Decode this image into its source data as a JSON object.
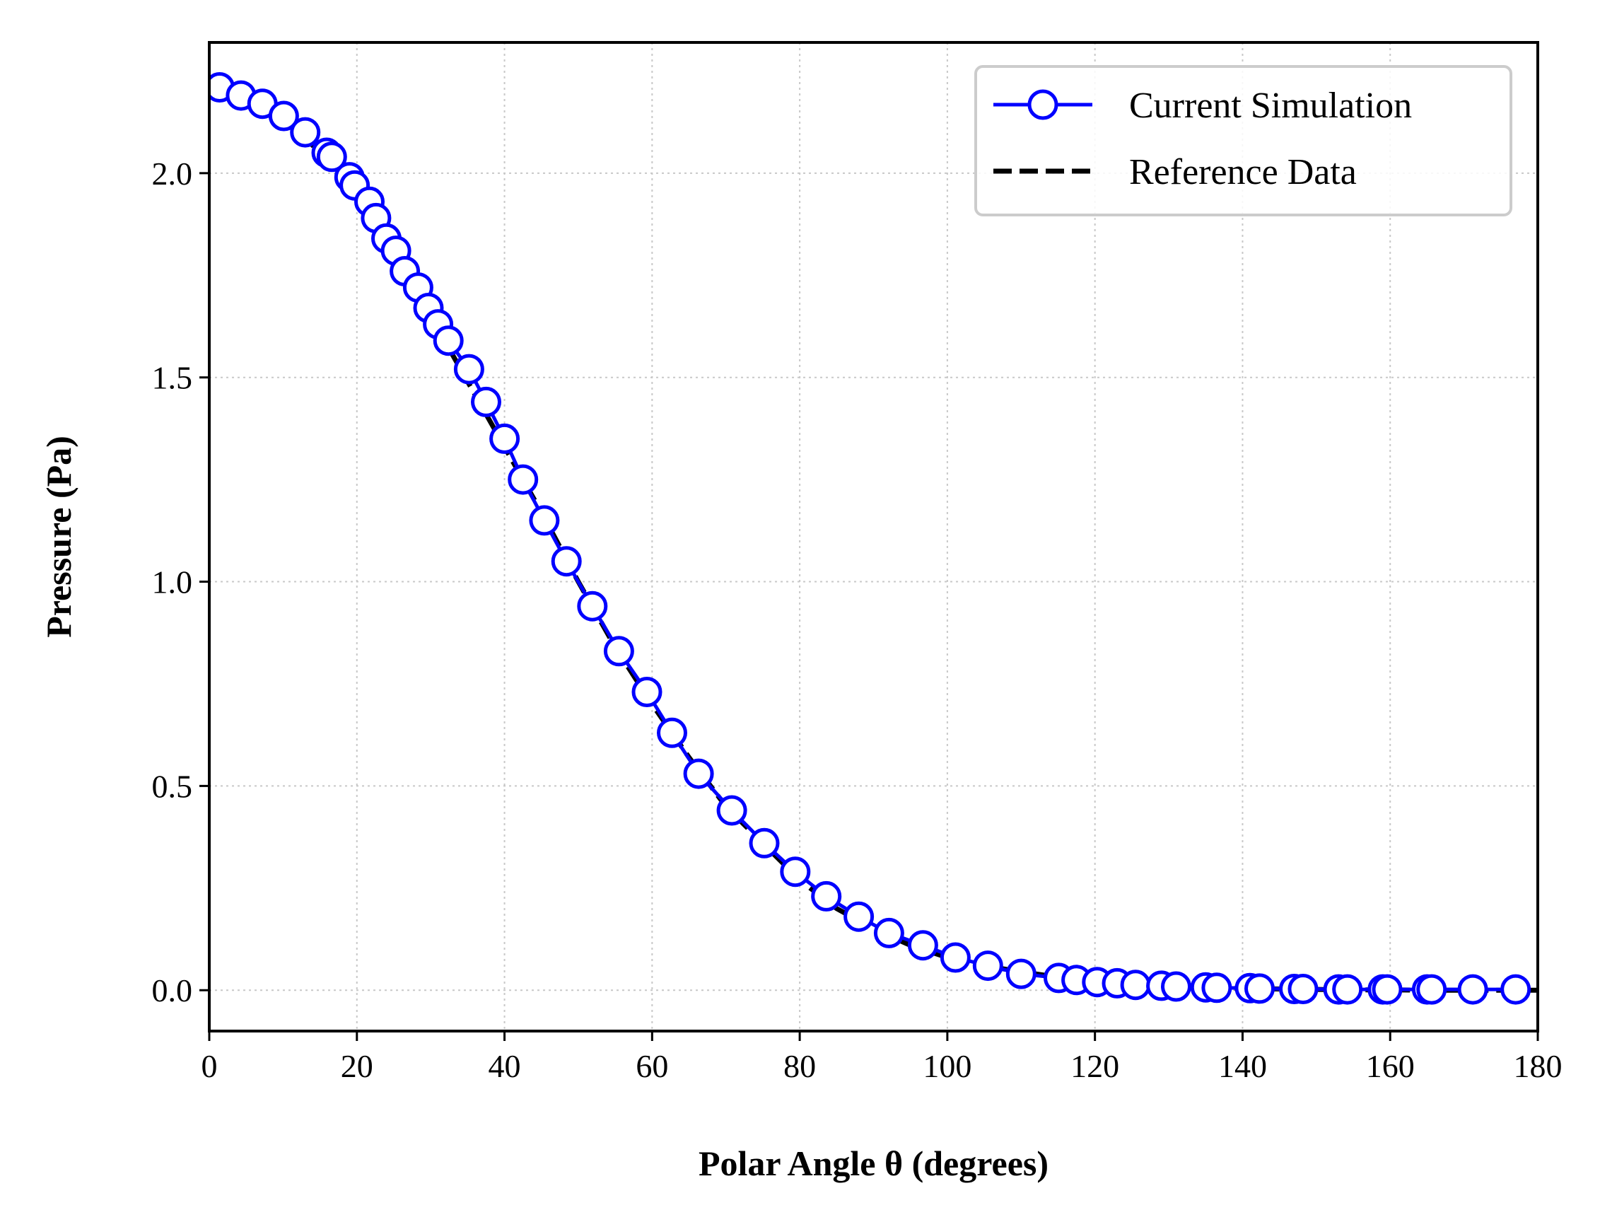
{
  "chart_data": {
    "type": "line",
    "title": "",
    "xlabel": "Polar Angle θ (degrees)",
    "ylabel": "Pressure (Pa)",
    "xlim": [
      0,
      180
    ],
    "ylim": [
      -0.1,
      2.32
    ],
    "xticks": [
      0,
      20,
      40,
      60,
      80,
      100,
      120,
      140,
      160,
      180
    ],
    "xtick_labels": [
      "0",
      "20",
      "40",
      "60",
      "80",
      "100",
      "120",
      "140",
      "160",
      "180"
    ],
    "yticks": [
      0.0,
      0.5,
      1.0,
      1.5,
      2.0
    ],
    "ytick_labels": [
      "0.0",
      "0.5",
      "1.0",
      "1.5",
      "2.0"
    ],
    "grid": true,
    "legend_position": "top-right",
    "series": [
      {
        "name": "Current Simulation",
        "style": "line-with-open-circle-markers",
        "color": "#0000ff",
        "x": [
          1.4,
          4.3,
          7.2,
          10.1,
          13.0,
          15.9,
          16.6,
          19.0,
          19.7,
          21.7,
          22.6,
          24.0,
          25.3,
          26.5,
          28.3,
          29.7,
          31.0,
          32.4,
          35.2,
          37.5,
          40.0,
          42.5,
          45.4,
          48.4,
          51.9,
          55.5,
          59.3,
          62.7,
          66.3,
          70.8,
          75.2,
          79.4,
          83.6,
          88.0,
          92.1,
          96.7,
          101.1,
          105.5,
          110.0,
          115.1,
          117.5,
          120.3,
          123.0,
          125.5,
          129.0,
          131.0,
          135.0,
          136.5,
          141.0,
          142.3,
          147.0,
          148.2,
          153.0,
          154.2,
          159.0,
          159.6,
          165.0,
          165.6,
          171.2,
          177.0
        ],
        "y": [
          2.21,
          2.19,
          2.17,
          2.14,
          2.1,
          2.05,
          2.04,
          1.99,
          1.97,
          1.93,
          1.89,
          1.84,
          1.81,
          1.76,
          1.72,
          1.67,
          1.63,
          1.59,
          1.52,
          1.44,
          1.35,
          1.25,
          1.15,
          1.05,
          0.94,
          0.83,
          0.73,
          0.63,
          0.53,
          0.44,
          0.36,
          0.29,
          0.23,
          0.18,
          0.14,
          0.11,
          0.08,
          0.06,
          0.04,
          0.03,
          0.025,
          0.02,
          0.017,
          0.013,
          0.011,
          0.009,
          0.007,
          0.006,
          0.005,
          0.004,
          0.003,
          0.003,
          0.002,
          0.002,
          0.002,
          0.002,
          0.002,
          0.002,
          0.002,
          0.002
        ]
      },
      {
        "name": "Reference Data",
        "style": "dashed-line",
        "color": "#000000",
        "x": [
          0,
          5,
          10,
          15,
          20,
          25,
          30,
          35,
          40,
          45,
          50,
          55,
          60,
          65,
          70,
          75,
          80,
          85,
          90,
          95,
          100,
          105,
          110,
          115,
          120,
          125,
          130,
          135,
          140,
          145,
          150,
          155,
          160,
          165,
          170,
          175,
          180
        ],
        "y": [
          2.21,
          2.19,
          2.14,
          2.05,
          1.95,
          1.81,
          1.65,
          1.49,
          1.33,
          1.17,
          1.0,
          0.84,
          0.7,
          0.57,
          0.45,
          0.36,
          0.27,
          0.2,
          0.15,
          0.11,
          0.08,
          0.06,
          0.045,
          0.032,
          0.022,
          0.015,
          0.01,
          0.006,
          0.004,
          0.003,
          0.002,
          0.001,
          0.001,
          0.0,
          0.0,
          0.0,
          0.0
        ]
      }
    ]
  }
}
